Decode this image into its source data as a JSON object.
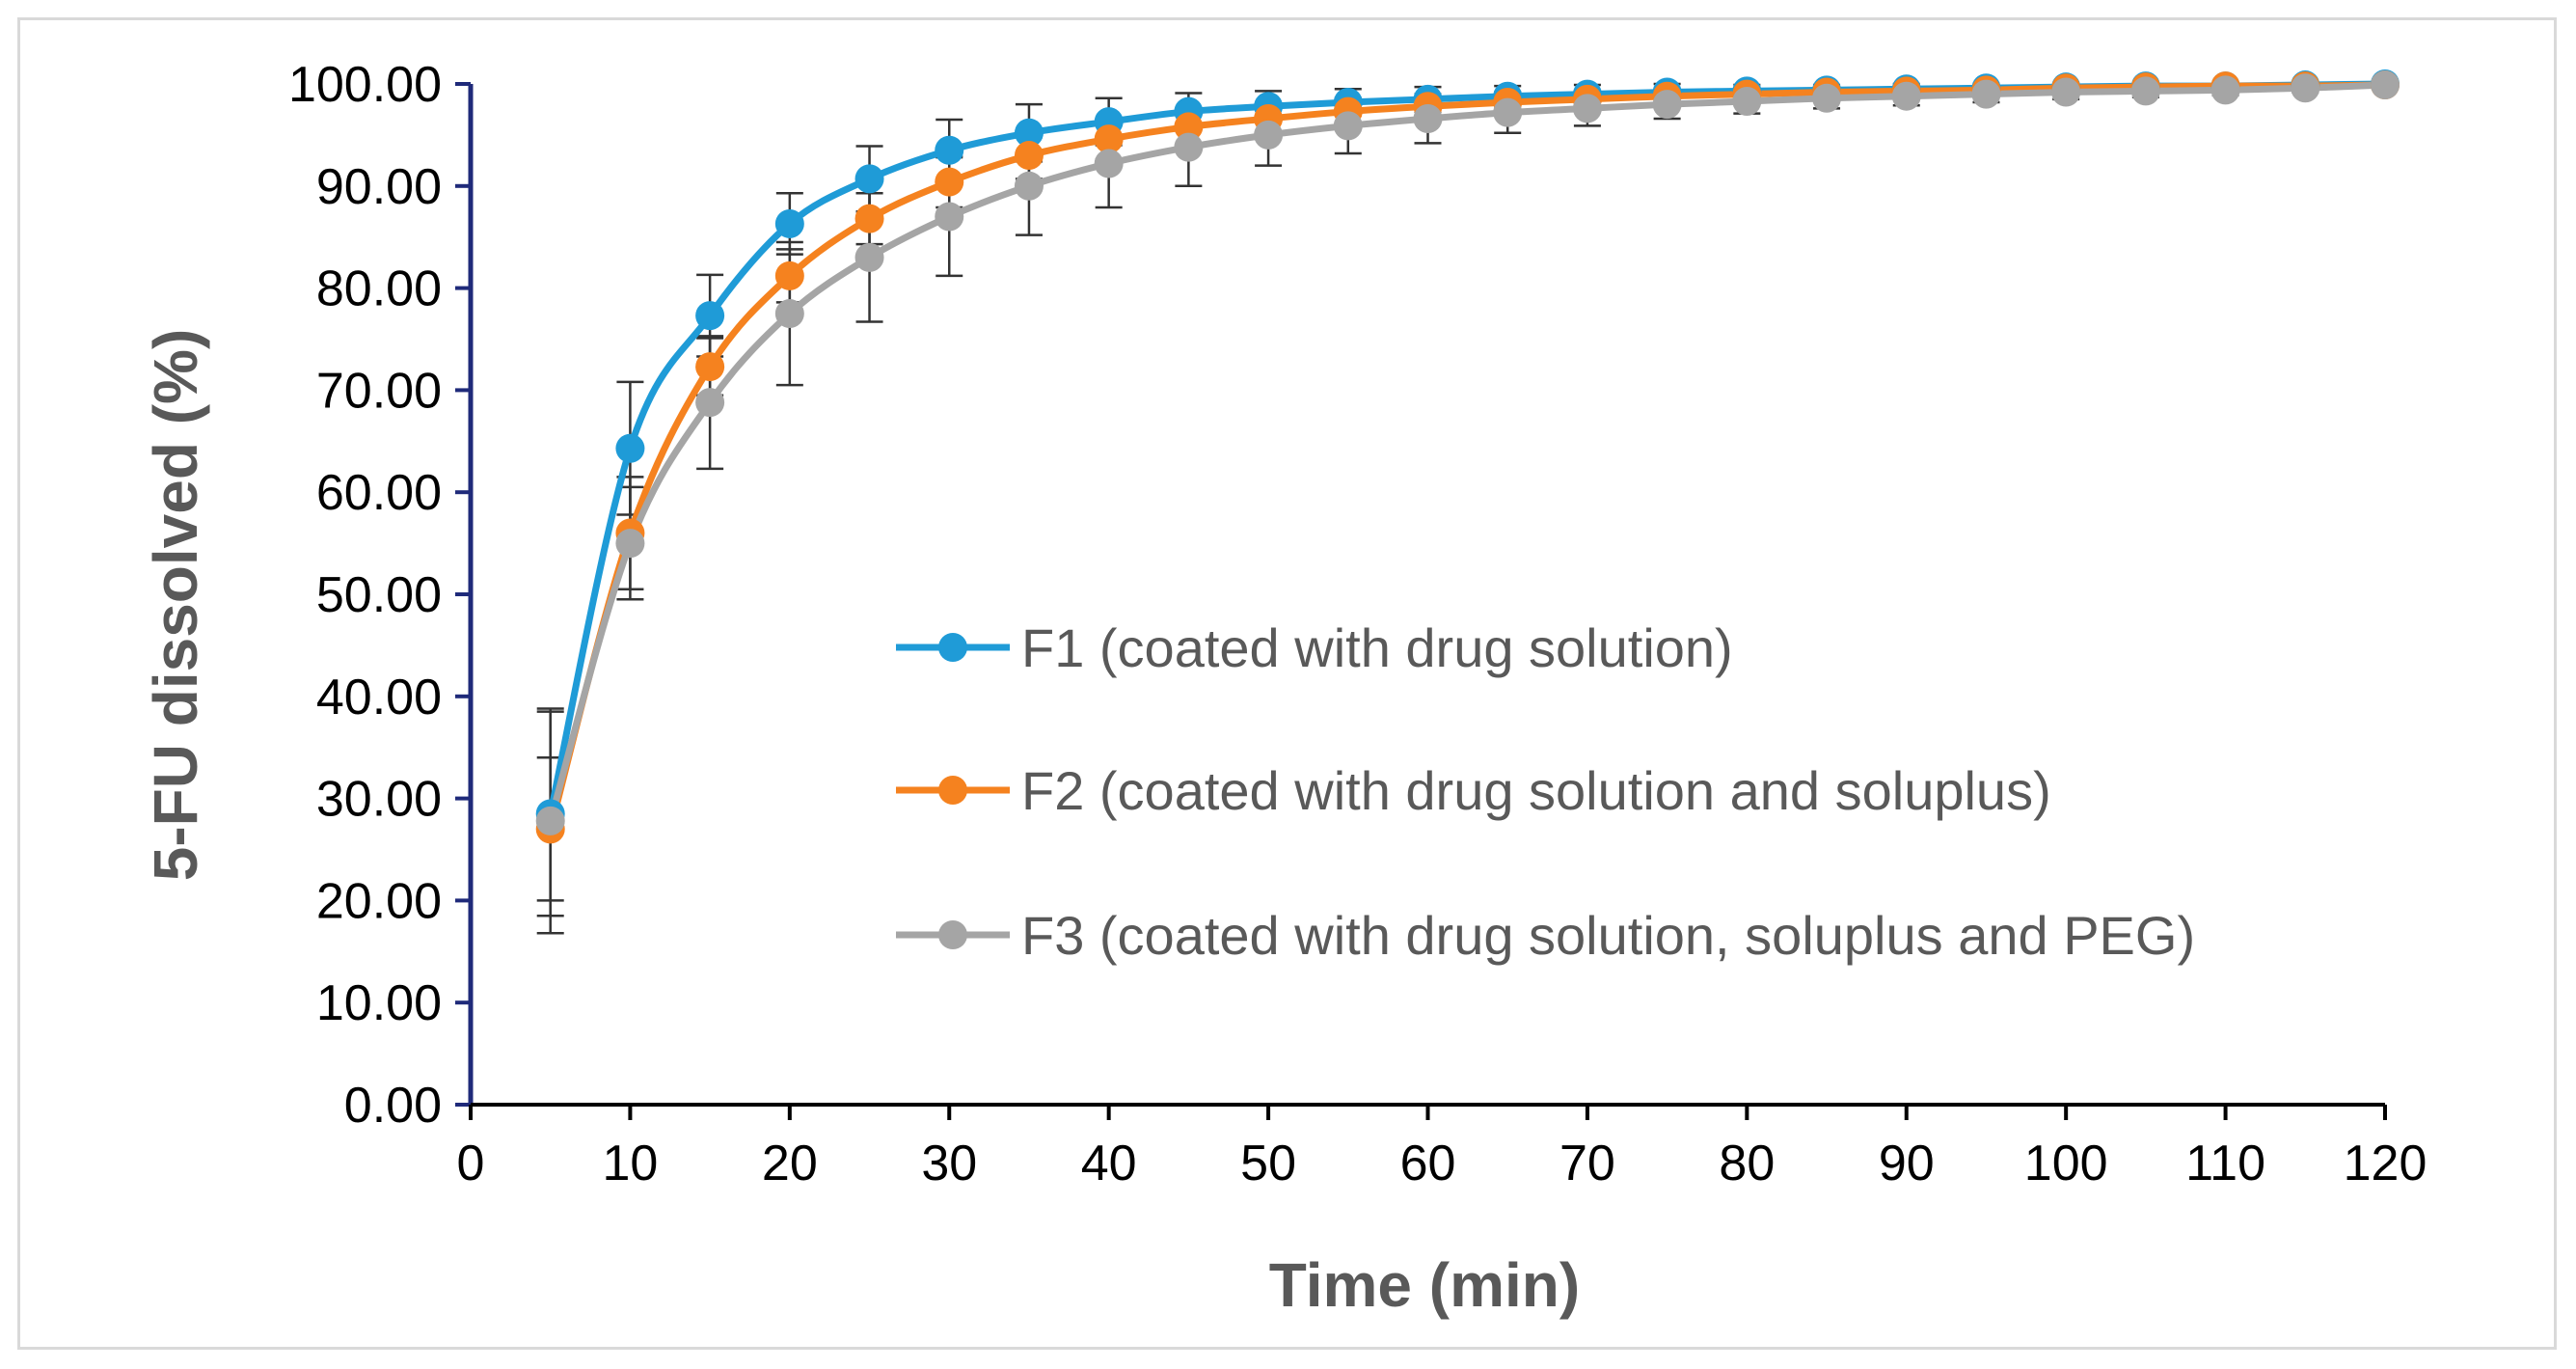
{
  "chart_data": {
    "type": "line",
    "title": "",
    "xlabel": "Time (min)",
    "ylabel": "5-FU dissolved (%)",
    "xlim": [
      0,
      120
    ],
    "ylim": [
      0,
      100
    ],
    "x_ticks": [
      "0",
      "10",
      "20",
      "30",
      "40",
      "50",
      "60",
      "70",
      "80",
      "90",
      "100",
      "110",
      "120"
    ],
    "y_ticks": [
      "0.00",
      "10.00",
      "20.00",
      "30.00",
      "40.00",
      "50.00",
      "60.00",
      "70.00",
      "80.00",
      "90.00",
      "100.00"
    ],
    "grid": false,
    "legend_position": "center-right",
    "x": [
      5,
      10,
      15,
      20,
      25,
      30,
      35,
      40,
      45,
      50,
      55,
      60,
      65,
      70,
      75,
      80,
      85,
      90,
      95,
      100,
      105,
      110,
      115,
      120
    ],
    "series": [
      {
        "name": "F1 (coated with drug solution)",
        "color": "#1f9bd7",
        "values": [
          28.5,
          64.3,
          77.3,
          86.3,
          90.7,
          93.5,
          95.2,
          96.3,
          97.3,
          97.8,
          98.2,
          98.5,
          98.8,
          99.0,
          99.2,
          99.3,
          99.4,
          99.5,
          99.6,
          99.7,
          99.8,
          99.8,
          99.9,
          100.0
        ],
        "errors": [
          10.0,
          6.5,
          4.0,
          3.0,
          3.2,
          3.0,
          2.8,
          2.3,
          1.8,
          1.5,
          1.3,
          1.2,
          1.0,
          0.9,
          0.8,
          0.6,
          0.5,
          0.5,
          0.4,
          0.3,
          0.3,
          0.2,
          0.2,
          0.1
        ]
      },
      {
        "name": "F2 (coated with drug solution and soluplus)",
        "color": "#f5821f",
        "values": [
          27.0,
          56.0,
          72.3,
          81.2,
          86.8,
          90.4,
          93.0,
          94.6,
          95.8,
          96.6,
          97.3,
          97.8,
          98.2,
          98.5,
          98.8,
          99.0,
          99.2,
          99.3,
          99.4,
          99.6,
          99.7,
          99.8,
          99.8,
          99.9
        ],
        "errors": [
          7.0,
          5.5,
          2.8,
          2.6,
          2.5,
          2.5,
          2.3,
          2.0,
          1.8,
          1.5,
          1.2,
          1.0,
          0.9,
          0.8,
          0.7,
          0.6,
          0.5,
          0.4,
          0.4,
          0.3,
          0.3,
          0.2,
          0.2,
          0.1
        ]
      },
      {
        "name": "F3 (coated with drug solution, soluplus and PEG)",
        "color": "#a5a5a5",
        "values": [
          27.8,
          55.0,
          68.8,
          77.5,
          83.0,
          87.0,
          90.0,
          92.2,
          93.8,
          95.0,
          95.9,
          96.6,
          97.2,
          97.6,
          98.0,
          98.3,
          98.6,
          98.8,
          99.0,
          99.2,
          99.3,
          99.4,
          99.6,
          99.9
        ],
        "errors": [
          11.0,
          5.5,
          6.5,
          7.0,
          6.3,
          5.8,
          4.8,
          4.3,
          3.8,
          3.0,
          2.7,
          2.4,
          2.0,
          1.7,
          1.4,
          1.2,
          1.0,
          0.9,
          0.8,
          0.7,
          0.6,
          0.5,
          0.4,
          0.3
        ]
      }
    ]
  }
}
